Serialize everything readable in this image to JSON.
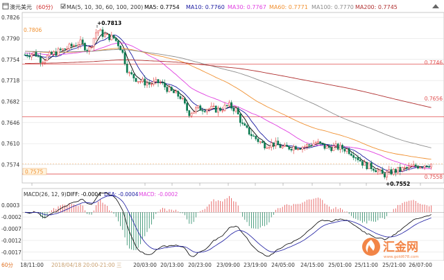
{
  "header": {
    "symbol": "澳元美元",
    "period": "(60分)",
    "ma_spec": "MA(5, 10, 30, 60, 100, 200)",
    "ma5": "MA5: 0.7754",
    "ma10": "MA10: 0.7760",
    "ma30": "MA30: 0.7767",
    "ma60": "MA60: 0.7771",
    "ma100": "MA100: 0.7770",
    "ma200": "MA200: 0.7745"
  },
  "price_axis": {
    "ticks": [
      "0.7826",
      "0.7790",
      "0.7754",
      "0.7718",
      "0.7682",
      "0.7646",
      "0.7610",
      "0.7574"
    ]
  },
  "levels": {
    "left_marker": "0.7806",
    "current_marker": "0.7575",
    "right": [
      "0.7746",
      "0.7656",
      "0.7558"
    ]
  },
  "annotations": {
    "high": "+0.7813",
    "low": "+0.7552"
  },
  "macd": {
    "title": "MACD(26, 12, 9)",
    "diff": "DIFF: -0.0004",
    "dea": "DEA: -0.0004",
    "macd": "MACD: -0.0002",
    "ticks": [
      "0.0003",
      "-0.0002",
      "-0.0007",
      "-0.0012",
      "-0.0017"
    ]
  },
  "time_axis": {
    "period_label": "60分",
    "labels": [
      "18/11:00",
      "20/03:00",
      "20/13:00",
      "20/23:00",
      "23/09:00",
      "23/19:00",
      "24/05:00",
      "24/15:00",
      "25/01:00",
      "25/11:00",
      "25/21:00",
      "26/07:00"
    ],
    "cursor_time": "2018/04/18 20:00-21:00 三"
  },
  "watermark": {
    "text": "汇金网",
    "url": "www.gold678.com"
  },
  "colors": {
    "ma5": "#000000",
    "ma10": "#1a1aa0",
    "ma30": "#e040e0",
    "ma60": "#f09030",
    "ma100": "#8c8c8c",
    "ma200": "#b03030",
    "level": "#e05050",
    "up_candle": "#e03030",
    "down_candle": "#0a7a50",
    "grid": "#dcdcdc",
    "watermark": "#f07028"
  }
}
